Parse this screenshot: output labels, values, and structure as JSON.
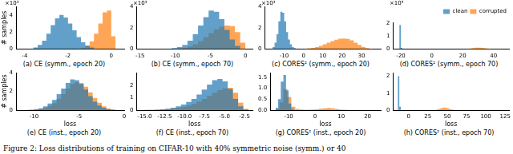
{
  "caption": "Figure 2: Loss distributions of training on CIFAR-10 with 40% symmetric noise (symm.) or 40",
  "chart_data": [
    {
      "type": "histogram",
      "title": "(a) CE (symm., epoch 20)",
      "y_label": "# samples",
      "annotation": "×10³",
      "xlim": [
        -4.4,
        0.6
      ],
      "xticks": [
        -4,
        -2,
        0
      ],
      "ylim": [
        0,
        5
      ],
      "yticks": [
        0,
        2,
        4
      ],
      "series": [
        {
          "name": "clean",
          "color": "#1f77b4",
          "bins": [
            -3.8,
            -3.6,
            -3.4,
            -3.2,
            -3.0,
            -2.8,
            -2.6,
            -2.4,
            -2.2,
            -2.0,
            -1.8,
            -1.6,
            -1.4,
            -1.2,
            -1.0,
            -0.8,
            -0.6
          ],
          "values": [
            0.05,
            0.2,
            0.5,
            1.0,
            1.8,
            2.8,
            3.6,
            4.0,
            3.7,
            3.0,
            2.2,
            1.4,
            0.8,
            0.4,
            0.2,
            0.05
          ]
        },
        {
          "name": "corrupted",
          "color": "#ff7f0e",
          "bins": [
            -1.6,
            -1.4,
            -1.2,
            -1.0,
            -0.8,
            -0.6,
            -0.4,
            -0.2,
            0,
            0.2
          ],
          "values": [
            0.05,
            0.15,
            0.4,
            0.9,
            1.8,
            3.0,
            4.3,
            4.5,
            1.5
          ]
        }
      ]
    },
    {
      "type": "histogram",
      "title": "(b) CE (symm., epoch 70)",
      "annotation": "×10³",
      "xlim": [
        -15.5,
        1
      ],
      "xticks": [
        -15,
        -10,
        -5,
        0
      ],
      "ylim": [
        0,
        4
      ],
      "yticks": [
        0,
        2,
        4
      ],
      "series": [
        {
          "name": "clean",
          "color": "#1f77b4",
          "bins": [
            -12,
            -11.25,
            -10.5,
            -9.75,
            -9,
            -8.25,
            -7.5,
            -6.75,
            -6,
            -5.25,
            -4.5,
            -3.75,
            -3,
            -2.25,
            -1.5,
            -0.75,
            0
          ],
          "values": [
            0.02,
            0.05,
            0.1,
            0.2,
            0.4,
            0.8,
            1.4,
            2.2,
            3.0,
            3.6,
            3.5,
            2.8,
            1.8,
            0.9,
            0.3,
            0.05
          ]
        },
        {
          "name": "corrupted",
          "color": "#ff7f0e",
          "bins": [
            -10.5,
            -9.75,
            -9,
            -8.25,
            -7.5,
            -6.75,
            -6,
            -5.25,
            -4.5,
            -3.75,
            -3,
            -2.25,
            -1.5,
            -0.75,
            0
          ],
          "values": [
            0.03,
            0.06,
            0.12,
            0.25,
            0.45,
            0.75,
            1.1,
            1.5,
            1.85,
            2.1,
            2.2,
            2.15,
            1.6,
            0.6
          ]
        }
      ]
    },
    {
      "type": "histogram",
      "title": "(c) CORES² (symm., epoch 20)",
      "annotation": "×10³",
      "xlim": [
        -20,
        40
      ],
      "xticks": [
        -10,
        0,
        10,
        20,
        30
      ],
      "ylim": [
        0,
        4
      ],
      "yticks": [
        0,
        2,
        4
      ],
      "series": [
        {
          "name": "clean",
          "color": "#1f77b4",
          "bins": [
            -17,
            -16,
            -15,
            -14,
            -13,
            -12,
            -11,
            -10,
            -9,
            -8,
            -7,
            -6,
            -5,
            -4,
            -3
          ],
          "values": [
            0.05,
            0.2,
            0.6,
            1.4,
            2.6,
            3.5,
            3.4,
            2.6,
            1.6,
            0.9,
            0.45,
            0.2,
            0.1,
            0.05
          ]
        },
        {
          "name": "corrupted",
          "color": "#ff7f0e",
          "bins": [
            -2,
            0,
            2,
            4,
            6,
            8,
            10,
            12,
            14,
            16,
            18,
            20,
            22,
            24,
            26,
            28,
            30,
            32,
            34,
            36
          ],
          "values": [
            0.03,
            0.05,
            0.08,
            0.12,
            0.2,
            0.3,
            0.45,
            0.6,
            0.75,
            0.88,
            0.97,
            1.0,
            0.95,
            0.82,
            0.6,
            0.4,
            0.22,
            0.1,
            0.04
          ]
        }
      ]
    },
    {
      "type": "histogram",
      "title": "(d) CORES² (symm., epoch 70)",
      "annotation": "×10⁴",
      "legend": "upper right",
      "xlim": [
        -25,
        50
      ],
      "xticks": [
        -20,
        0,
        20,
        40
      ],
      "ylim": [
        0,
        2.1
      ],
      "yticks": [
        0,
        1,
        2
      ],
      "series": [
        {
          "name": "clean",
          "color": "#1f77b4",
          "bins": [
            -21,
            -20,
            -19
          ],
          "values": [
            1.9,
            0.1
          ]
        },
        {
          "name": "corrupted",
          "color": "#ff7f0e",
          "bins": [
            20,
            22,
            24,
            26,
            28,
            30,
            32,
            34,
            36,
            38,
            40
          ],
          "values": [
            0.01,
            0.03,
            0.06,
            0.09,
            0.11,
            0.12,
            0.1,
            0.07,
            0.04,
            0.02
          ]
        }
      ]
    },
    {
      "type": "histogram",
      "title": "(e) CE (inst., epoch 20)",
      "y_label": "# samples",
      "x_label": "loss",
      "xlim": [
        -12,
        0
      ],
      "xticks": [
        -10,
        -5,
        0
      ],
      "ylim": [
        0,
        4
      ],
      "yticks": [
        0,
        2,
        4
      ],
      "series": [
        {
          "name": "clean",
          "color": "#1f77b4",
          "bins": [
            -11,
            -10.5,
            -10,
            -9.5,
            -9,
            -8.5,
            -8,
            -7.5,
            -7,
            -6.5,
            -6,
            -5.5,
            -5,
            -4.5,
            -4,
            -3.5,
            -3,
            -2.5,
            -2,
            -1.5,
            -1
          ],
          "values": [
            0.02,
            0.05,
            0.1,
            0.2,
            0.4,
            0.7,
            1.1,
            1.7,
            2.3,
            2.9,
            3.3,
            3.2,
            2.8,
            2.2,
            1.5,
            0.9,
            0.5,
            0.25,
            0.1,
            0.04
          ]
        },
        {
          "name": "corrupted",
          "color": "#ff7f0e",
          "bins": [
            -11,
            -10.5,
            -10,
            -9.5,
            -9,
            -8.5,
            -8,
            -7.5,
            -7,
            -6.5,
            -6,
            -5.5,
            -5,
            -4.5,
            -4,
            -3.5,
            -3,
            -2.5,
            -2,
            -1.5,
            -1
          ],
          "values": [
            0.01,
            0.03,
            0.06,
            0.12,
            0.25,
            0.45,
            0.75,
            1.2,
            1.7,
            2.3,
            2.8,
            3.0,
            2.9,
            2.5,
            1.9,
            1.3,
            0.8,
            0.4,
            0.18,
            0.06
          ]
        }
      ]
    },
    {
      "type": "histogram",
      "title": "(f) CE (inst., epoch 70)",
      "x_label": "loss",
      "xlim": [
        -16,
        -1.5
      ],
      "xticks": [
        {
          "value": -15,
          "label": "-15.0"
        },
        -12.5,
        {
          "value": -10,
          "label": "-10.0"
        },
        -7.5,
        {
          "value": -5,
          "label": "-5.0"
        },
        -2.5
      ],
      "ylim": [
        0,
        3
      ],
      "yticks": [
        0,
        1,
        2
      ],
      "series": [
        {
          "name": "clean",
          "color": "#1f77b4",
          "bins": [
            -15,
            -14.35,
            -13.7,
            -13.05,
            -12.4,
            -11.75,
            -11.1,
            -10.45,
            -9.8,
            -9.15,
            -8.5,
            -7.85,
            -7.2,
            -6.55,
            -5.9,
            -5.25,
            -4.6,
            -3.95,
            -3.3,
            -2.65,
            -2.0
          ],
          "values": [
            0.01,
            0.02,
            0.04,
            0.07,
            0.12,
            0.2,
            0.3,
            0.45,
            0.65,
            0.9,
            1.25,
            1.65,
            2.05,
            2.4,
            2.5,
            2.3,
            1.7,
            0.9,
            0.3,
            0.05
          ]
        },
        {
          "name": "corrupted",
          "color": "#ff7f0e",
          "bins": [
            -15,
            -14.35,
            -13.7,
            -13.05,
            -12.4,
            -11.75,
            -11.1,
            -10.45,
            -9.8,
            -9.15,
            -8.5,
            -7.85,
            -7.2,
            -6.55,
            -5.9,
            -5.25,
            -4.6,
            -3.95,
            -3.3,
            -2.65,
            -2.0
          ],
          "values": [
            0.01,
            0.02,
            0.03,
            0.05,
            0.08,
            0.12,
            0.18,
            0.26,
            0.36,
            0.5,
            0.68,
            0.9,
            1.15,
            1.4,
            1.6,
            1.75,
            1.8,
            1.4,
            0.6,
            0.1
          ]
        }
      ]
    },
    {
      "type": "histogram",
      "title": "(g) CORES² (inst., epoch 20)",
      "x_label": "loss",
      "xlim": [
        -17,
        25
      ],
      "xticks": [
        -10,
        0,
        10,
        20
      ],
      "ylim": [
        0,
        1.7
      ],
      "yticks": [
        {
          "value": 0,
          "label": "0.0"
        },
        0.5,
        {
          "value": 1,
          "label": "1.0"
        },
        1.5
      ],
      "series": [
        {
          "name": "clean",
          "color": "#1f77b4",
          "bins": [
            -15,
            -14,
            -13,
            -12,
            -11,
            -10,
            -9,
            -8
          ],
          "values": [
            0.1,
            0.5,
            1.3,
            1.6,
            0.9,
            0.3,
            0.05
          ]
        },
        {
          "name": "corrupted",
          "color": "#ff7f0e",
          "bins": [
            -15,
            -13.5,
            -12,
            -10.5,
            -9,
            -7.5,
            -6,
            -4.5,
            -3,
            -1.5,
            0,
            1.5,
            3,
            4.5,
            6,
            7.5,
            9,
            10.5,
            12,
            13.5,
            15
          ],
          "values": [
            0.05,
            0.35,
            0.95,
            0.6,
            0.15,
            0.05,
            0.03,
            0.02,
            0.02,
            0.03,
            0.04,
            0.06,
            0.08,
            0.1,
            0.08,
            0.05,
            0.03,
            0.02,
            0.01,
            0.01
          ]
        }
      ]
    },
    {
      "type": "histogram",
      "title": "(h) CORES² (inst., epoch 70)",
      "x_label": "loss",
      "xlim": [
        -20,
        130
      ],
      "xticks": [
        0,
        25,
        50,
        75,
        100,
        125
      ],
      "ylim": [
        0,
        2.2
      ],
      "yticks": [
        0,
        1,
        2
      ],
      "series": [
        {
          "name": "clean",
          "color": "#1f77b4",
          "bins": [
            -14,
            -12,
            -10
          ],
          "values": [
            2.0,
            0.2
          ]
        },
        {
          "name": "corrupted",
          "color": "#ff7f0e",
          "bins": [
            35,
            37.5,
            40,
            42.5,
            45,
            47.5,
            50,
            52.5,
            55,
            57.5,
            60
          ],
          "values": [
            0.02,
            0.05,
            0.09,
            0.13,
            0.15,
            0.14,
            0.1,
            0.06,
            0.03,
            0.01
          ]
        }
      ]
    }
  ]
}
